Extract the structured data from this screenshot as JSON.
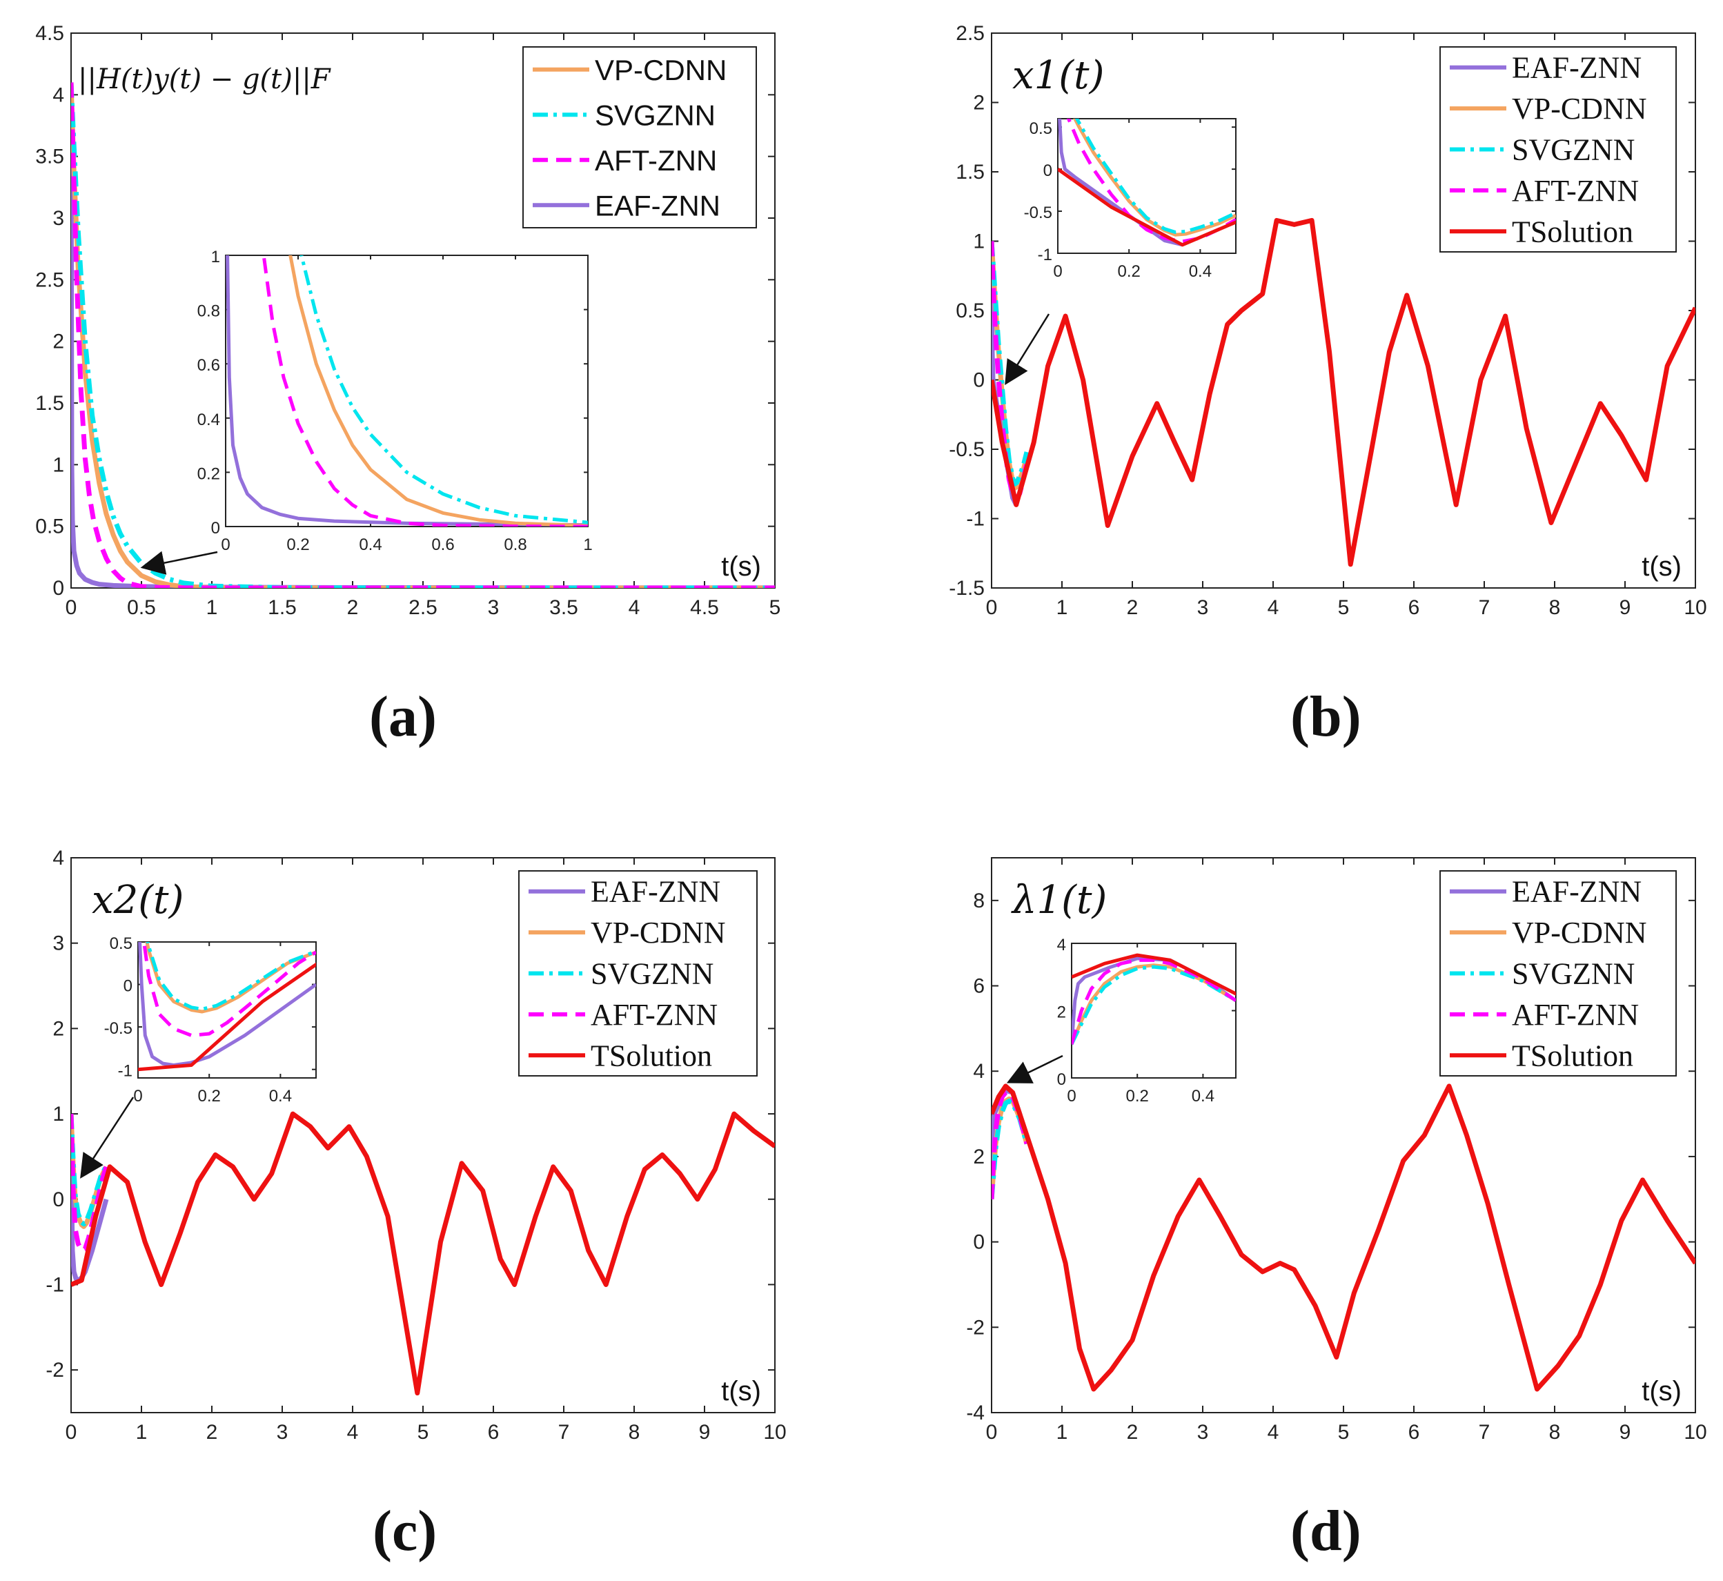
{
  "figure_labels": [
    "(a)",
    "(b)",
    "(c)",
    "(d)"
  ],
  "colors": {
    "EAF-ZNN": "#9370DB",
    "VP-CDNN": "#F4A460",
    "SVGZNN": "#00E5EE",
    "AFT-ZNN": "#FF00FF",
    "TSolution": "#EE1111"
  },
  "chart_data": [
    {
      "id": "a",
      "type": "line",
      "title": "",
      "ylabel": "||H(t)y(t) − g(t)||F",
      "xlabel": "t(s)",
      "xlim": [
        0,
        5
      ],
      "ylim": [
        0,
        4.5
      ],
      "xticks": [
        0,
        0.5,
        1,
        1.5,
        2,
        2.5,
        3,
        3.5,
        4,
        4.5,
        5
      ],
      "yticks": [
        0,
        0.5,
        1,
        1.5,
        2,
        2.5,
        3,
        3.5,
        4,
        4.5
      ],
      "legend": [
        "VP-CDNN",
        "SVGZNN",
        "AFT-ZNN",
        "EAF-ZNN"
      ],
      "legend_placement": "top-right",
      "series": [
        {
          "name": "EAF-ZNN",
          "x": [
            0,
            0.005,
            0.01,
            0.02,
            0.04,
            0.06,
            0.1,
            0.15,
            0.2,
            0.3,
            0.5,
            0.8,
            1,
            2,
            3,
            4,
            5
          ],
          "values": [
            4.1,
            1.0,
            0.55,
            0.3,
            0.18,
            0.12,
            0.07,
            0.045,
            0.03,
            0.02,
            0.012,
            0.008,
            0.006,
            0.003,
            0.002,
            0.001,
            0.001
          ]
        },
        {
          "name": "VP-CDNN",
          "x": [
            0,
            0.02,
            0.05,
            0.1,
            0.15,
            0.2,
            0.25,
            0.3,
            0.35,
            0.4,
            0.5,
            0.6,
            0.7,
            0.8,
            1,
            1.5,
            2,
            3,
            4,
            5
          ],
          "values": [
            4.1,
            3.4,
            2.6,
            1.75,
            1.2,
            0.85,
            0.6,
            0.43,
            0.3,
            0.21,
            0.1,
            0.05,
            0.025,
            0.012,
            0.003,
            0.001,
            0,
            0,
            0,
            0
          ]
        },
        {
          "name": "SVGZNN",
          "x": [
            0,
            0.02,
            0.05,
            0.1,
            0.15,
            0.2,
            0.25,
            0.3,
            0.35,
            0.4,
            0.5,
            0.6,
            0.7,
            0.8,
            1,
            1.5,
            2,
            3,
            4,
            5
          ],
          "values": [
            4.1,
            3.6,
            2.9,
            2.0,
            1.4,
            1.05,
            0.78,
            0.58,
            0.44,
            0.34,
            0.2,
            0.12,
            0.07,
            0.04,
            0.015,
            0.003,
            0.001,
            0,
            0,
            0
          ]
        },
        {
          "name": "AFT-ZNN",
          "x": [
            0,
            0.02,
            0.04,
            0.07,
            0.1,
            0.13,
            0.16,
            0.2,
            0.25,
            0.3,
            0.35,
            0.4,
            0.5,
            0.6,
            0.8,
            1,
            2,
            3,
            4,
            5
          ],
          "values": [
            4.1,
            3.3,
            2.5,
            1.6,
            1.05,
            0.75,
            0.55,
            0.38,
            0.24,
            0.14,
            0.08,
            0.04,
            0.012,
            0.004,
            0.001,
            0,
            0,
            0,
            0,
            0
          ]
        }
      ],
      "inset": {
        "xlim": [
          0,
          1
        ],
        "ylim": [
          0,
          1
        ],
        "xticks": [
          0,
          0.2,
          0.4,
          0.6,
          0.8,
          1
        ],
        "yticks": [
          0,
          0.2,
          0.4,
          0.6,
          0.8,
          1
        ]
      }
    },
    {
      "id": "b",
      "type": "line",
      "ylabel": "x1(t)",
      "xlabel": "t(s)",
      "xlim": [
        0,
        10
      ],
      "ylim": [
        -1.5,
        2.5
      ],
      "xticks": [
        0,
        1,
        2,
        3,
        4,
        5,
        6,
        7,
        8,
        9,
        10
      ],
      "yticks": [
        -1.5,
        -1,
        -0.5,
        0,
        0.5,
        1,
        1.5,
        2,
        2.5
      ],
      "legend": [
        "EAF-ZNN",
        "VP-CDNN",
        "SVGZNN",
        "AFT-ZNN",
        "TSolution"
      ],
      "legend_placement": "top-right",
      "series": [
        {
          "name": "EAF-ZNN",
          "x": [
            0,
            0.01,
            0.02,
            0.05,
            0.1,
            0.2,
            0.3,
            0.35
          ],
          "values": [
            1.0,
            0.2,
            0.0,
            -0.1,
            -0.25,
            -0.55,
            -0.85,
            -0.9
          ]
        },
        {
          "name": "VP-CDNN",
          "x": [
            0,
            0.03,
            0.06,
            0.1,
            0.15,
            0.2,
            0.25,
            0.3,
            0.33,
            0.36,
            0.4,
            0.45,
            0.5
          ],
          "values": [
            1.0,
            0.75,
            0.5,
            0.2,
            -0.1,
            -0.38,
            -0.6,
            -0.73,
            -0.78,
            -0.77,
            -0.72,
            -0.65,
            -0.55
          ]
        },
        {
          "name": "SVGZNN",
          "x": [
            0,
            0.03,
            0.06,
            0.1,
            0.15,
            0.2,
            0.25,
            0.3,
            0.33,
            0.36,
            0.4,
            0.45,
            0.5
          ],
          "values": [
            1.0,
            0.78,
            0.55,
            0.25,
            -0.05,
            -0.35,
            -0.58,
            -0.71,
            -0.75,
            -0.74,
            -0.69,
            -0.62,
            -0.52
          ]
        },
        {
          "name": "AFT-ZNN",
          "x": [
            0,
            0.03,
            0.06,
            0.1,
            0.15,
            0.2,
            0.25,
            0.3,
            0.35,
            0.4,
            0.45,
            0.5
          ],
          "values": [
            1.0,
            0.6,
            0.3,
            0.0,
            -0.3,
            -0.55,
            -0.72,
            -0.82,
            -0.86,
            -0.82,
            -0.72,
            -0.6
          ]
        },
        {
          "name": "TSolution",
          "x": [
            0,
            0.15,
            0.35,
            0.6,
            0.8,
            1.05,
            1.3,
            1.65,
            2.0,
            2.35,
            2.6,
            2.85,
            3.1,
            3.35,
            3.55,
            3.85,
            4.05,
            4.3,
            4.55,
            4.8,
            5.1,
            5.4,
            5.65,
            5.9,
            6.2,
            6.6,
            6.95,
            7.3,
            7.6,
            7.95,
            8.3,
            8.65,
            8.95,
            9.3,
            9.6,
            10.0
          ],
          "values": [
            0,
            -0.45,
            -0.9,
            -0.45,
            0.1,
            0.46,
            0.0,
            -1.05,
            -0.55,
            -0.17,
            -0.45,
            -0.72,
            -0.1,
            0.4,
            0.5,
            0.62,
            1.15,
            1.12,
            1.15,
            0.2,
            -1.33,
            -0.5,
            0.2,
            0.61,
            0.1,
            -0.9,
            0.0,
            0.46,
            -0.35,
            -1.03,
            -0.6,
            -0.17,
            -0.4,
            -0.72,
            0.1,
            0.52
          ]
        }
      ],
      "inset": {
        "xlim": [
          0,
          0.5
        ],
        "ylim": [
          -1,
          0.6
        ],
        "xticks": [
          0,
          0.2,
          0.4
        ],
        "yticks": [
          -1,
          -0.5,
          0,
          0.5
        ]
      }
    },
    {
      "id": "c",
      "type": "line",
      "ylabel": "x2(t)",
      "xlabel": "t(s)",
      "xlim": [
        0,
        10
      ],
      "ylim": [
        -2.5,
        4
      ],
      "xticks": [
        0,
        1,
        2,
        3,
        4,
        5,
        6,
        7,
        8,
        9,
        10
      ],
      "yticks": [
        -2,
        -1,
        0,
        1,
        2,
        3,
        4
      ],
      "legend": [
        "EAF-ZNN",
        "VP-CDNN",
        "SVGZNN",
        "AFT-ZNN",
        "TSolution"
      ],
      "legend_placement": "top-right",
      "series": [
        {
          "name": "EAF-ZNN",
          "x": [
            0,
            0.01,
            0.02,
            0.04,
            0.07,
            0.1,
            0.15,
            0.2,
            0.3,
            0.4,
            0.5
          ],
          "values": [
            1.0,
            0.0,
            -0.6,
            -0.85,
            -0.93,
            -0.95,
            -0.92,
            -0.85,
            -0.6,
            -0.3,
            0.0
          ]
        },
        {
          "name": "VP-CDNN",
          "x": [
            0,
            0.03,
            0.06,
            0.1,
            0.15,
            0.18,
            0.22,
            0.28,
            0.35,
            0.42,
            0.5
          ],
          "values": [
            1.0,
            0.4,
            0.0,
            -0.2,
            -0.3,
            -0.32,
            -0.28,
            -0.15,
            0.05,
            0.25,
            0.38
          ]
        },
        {
          "name": "SVGZNN",
          "x": [
            0,
            0.03,
            0.06,
            0.1,
            0.15,
            0.18,
            0.22,
            0.28,
            0.35,
            0.42,
            0.5
          ],
          "values": [
            1.0,
            0.45,
            0.05,
            -0.17,
            -0.27,
            -0.29,
            -0.25,
            -0.12,
            0.07,
            0.26,
            0.39
          ]
        },
        {
          "name": "AFT-ZNN",
          "x": [
            0,
            0.03,
            0.06,
            0.1,
            0.15,
            0.2,
            0.25,
            0.3,
            0.38,
            0.45,
            0.5
          ],
          "values": [
            1.0,
            0.1,
            -0.35,
            -0.52,
            -0.6,
            -0.58,
            -0.45,
            -0.28,
            0.0,
            0.25,
            0.38
          ]
        },
        {
          "name": "TSolution",
          "x": [
            0,
            0.15,
            0.35,
            0.55,
            0.8,
            1.05,
            1.28,
            1.55,
            1.8,
            2.05,
            2.3,
            2.6,
            2.85,
            3.15,
            3.4,
            3.65,
            3.95,
            4.2,
            4.5,
            4.92,
            5.25,
            5.55,
            5.85,
            6.1,
            6.3,
            6.6,
            6.85,
            7.1,
            7.35,
            7.6,
            7.9,
            8.15,
            8.4,
            8.65,
            8.9,
            9.15,
            9.42,
            9.7,
            10.0
          ],
          "values": [
            -1,
            -0.95,
            -0.2,
            0.38,
            0.2,
            -0.5,
            -1.0,
            -0.4,
            0.2,
            0.52,
            0.38,
            0.0,
            0.3,
            1.0,
            0.85,
            0.6,
            0.85,
            0.5,
            -0.2,
            -2.27,
            -0.5,
            0.42,
            0.1,
            -0.7,
            -1.0,
            -0.2,
            0.38,
            0.1,
            -0.6,
            -1.0,
            -0.2,
            0.35,
            0.52,
            0.3,
            0.0,
            0.35,
            1.0,
            0.8,
            0.62
          ]
        }
      ],
      "inset": {
        "xlim": [
          0,
          0.5
        ],
        "ylim": [
          -1.1,
          0.5
        ],
        "xticks": [
          0,
          0.2,
          0.4
        ],
        "yticks": [
          -1,
          -0.5,
          0,
          0.5
        ]
      }
    },
    {
      "id": "d",
      "type": "line",
      "ylabel": "λ1(t)",
      "xlabel": "t(s)",
      "xlim": [
        0,
        10
      ],
      "ylim": [
        -4,
        9
      ],
      "xticks": [
        0,
        1,
        2,
        3,
        4,
        5,
        6,
        7,
        8,
        9,
        10
      ],
      "yticks": [
        -4,
        -2,
        0,
        2,
        4,
        6,
        8
      ],
      "legend": [
        "EAF-ZNN",
        "VP-CDNN",
        "SVGZNN",
        "AFT-ZNN",
        "TSolution"
      ],
      "legend_placement": "top-right",
      "series": [
        {
          "name": "EAF-ZNN",
          "x": [
            0,
            0.01,
            0.02,
            0.04,
            0.08,
            0.12,
            0.2,
            0.3,
            0.4,
            0.5
          ],
          "values": [
            1.0,
            2.3,
            2.8,
            3.0,
            3.15,
            3.3,
            3.55,
            3.5,
            3.0,
            2.3
          ]
        },
        {
          "name": "VP-CDNN",
          "x": [
            0,
            0.03,
            0.06,
            0.1,
            0.15,
            0.2,
            0.25,
            0.3,
            0.4,
            0.5
          ],
          "values": [
            1.0,
            1.7,
            2.3,
            2.8,
            3.15,
            3.3,
            3.35,
            3.3,
            2.9,
            2.3
          ]
        },
        {
          "name": "SVGZNN",
          "x": [
            0,
            0.03,
            0.06,
            0.1,
            0.15,
            0.2,
            0.25,
            0.3,
            0.4,
            0.5
          ],
          "values": [
            1.0,
            1.6,
            2.2,
            2.7,
            3.05,
            3.25,
            3.3,
            3.25,
            2.88,
            2.3
          ]
        },
        {
          "name": "AFT-ZNN",
          "x": [
            0,
            0.03,
            0.06,
            0.1,
            0.15,
            0.2,
            0.25,
            0.3,
            0.4,
            0.5
          ],
          "values": [
            1.0,
            2.0,
            2.65,
            3.1,
            3.4,
            3.5,
            3.5,
            3.4,
            2.95,
            2.3
          ]
        },
        {
          "name": "TSolution",
          "x": [
            0,
            0.1,
            0.2,
            0.3,
            0.5,
            0.8,
            1.05,
            1.25,
            1.45,
            1.7,
            2.0,
            2.3,
            2.65,
            2.95,
            3.25,
            3.55,
            3.85,
            4.1,
            4.3,
            4.6,
            4.9,
            5.15,
            5.5,
            5.85,
            6.15,
            6.5,
            6.75,
            7.05,
            7.35,
            7.75,
            8.05,
            8.35,
            8.65,
            8.95,
            9.25,
            9.6,
            10.0
          ],
          "values": [
            3.0,
            3.4,
            3.65,
            3.5,
            2.5,
            1.0,
            -0.5,
            -2.5,
            -3.45,
            -3.0,
            -2.3,
            -0.8,
            0.6,
            1.45,
            0.6,
            -0.3,
            -0.7,
            -0.5,
            -0.65,
            -1.5,
            -2.7,
            -1.2,
            0.3,
            1.9,
            2.5,
            3.65,
            2.5,
            0.9,
            -1.0,
            -3.45,
            -2.9,
            -2.2,
            -1.0,
            0.5,
            1.45,
            0.5,
            -0.5
          ]
        }
      ],
      "inset": {
        "xlim": [
          0,
          0.5
        ],
        "ylim": [
          0,
          4
        ],
        "xticks": [
          0,
          0.2,
          0.4
        ],
        "yticks": [
          0,
          2,
          4
        ]
      }
    }
  ]
}
